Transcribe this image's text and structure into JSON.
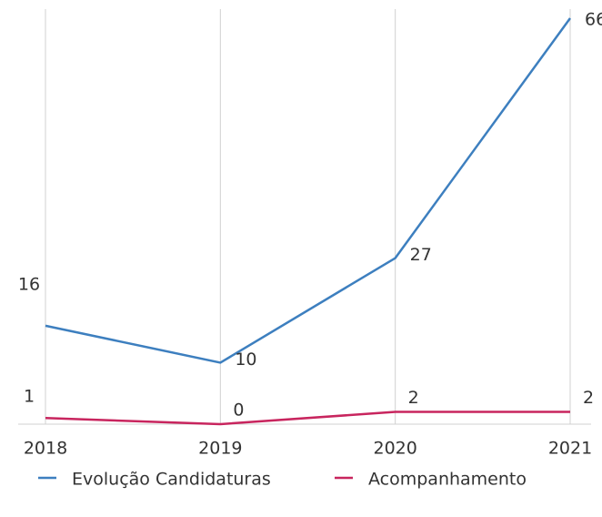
{
  "chart_data": {
    "type": "line",
    "categories": [
      "2018",
      "2019",
      "2020",
      "2021"
    ],
    "series": [
      {
        "name": "Evolução Candidaturas",
        "color": "#3d7fbf",
        "values": [
          16,
          10,
          27,
          66
        ]
      },
      {
        "name": "Acompanhamento",
        "color": "#c8255e",
        "values": [
          1,
          0,
          2,
          2
        ]
      }
    ],
    "ylim": [
      0,
      66
    ],
    "grid": true
  }
}
